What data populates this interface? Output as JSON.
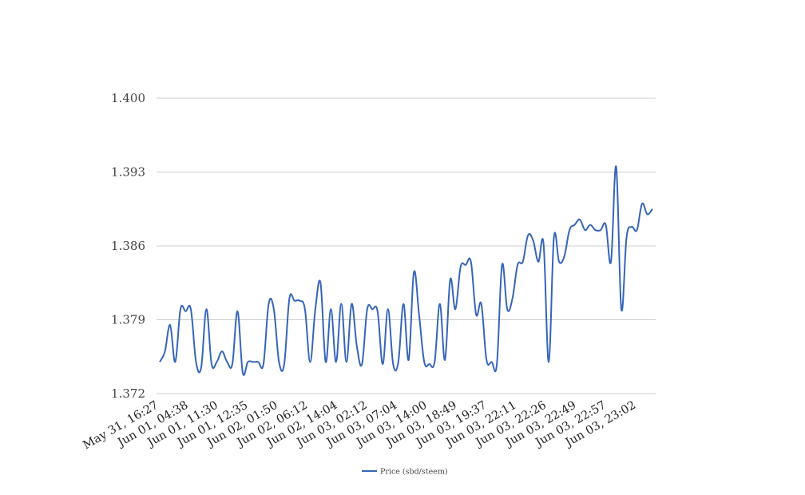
{
  "chart_data": {
    "type": "line",
    "title": "",
    "xlabel": "",
    "ylabel": "",
    "ylim": [
      1.372,
      1.4
    ],
    "yticks": [
      "1.372",
      "1.379",
      "1.386",
      "1.393",
      "1.400"
    ],
    "grid": "horizontal",
    "legend_position": "bottom-center",
    "x_tick_labels": [
      "May 31, 16:27",
      "Jun 01, 04:38",
      "Jun 01, 11:30",
      "Jun 01, 12:35",
      "Jun 02, 01:50",
      "Jun 02, 06:12",
      "Jun 02, 14:04",
      "Jun 03, 02:12",
      "Jun 03, 07:04",
      "Jun 03, 14:00",
      "Jun 03, 18:49",
      "Jun 03, 19:37",
      "Jun 03, 22:11",
      "Jun 03, 22:26",
      "Jun 03, 22:49",
      "Jun 03, 22:57",
      "Jun 03, 23:02"
    ],
    "series": [
      {
        "name": "Price (sbd/steem)",
        "color": "#3565b9",
        "values": [
          1.375,
          1.376,
          1.3785,
          1.375,
          1.38,
          1.3798,
          1.38,
          1.375,
          1.3745,
          1.38,
          1.3748,
          1.375,
          1.376,
          1.375,
          1.3748,
          1.3798,
          1.374,
          1.375,
          1.375,
          1.375,
          1.3748,
          1.3805,
          1.38,
          1.375,
          1.3748,
          1.381,
          1.3808,
          1.3808,
          1.38,
          1.375,
          1.38,
          1.3825,
          1.375,
          1.38,
          1.375,
          1.3805,
          1.375,
          1.3805,
          1.3765,
          1.3748,
          1.38,
          1.38,
          1.3798,
          1.3748,
          1.38,
          1.3748,
          1.375,
          1.3805,
          1.3752,
          1.3835,
          1.3795,
          1.375,
          1.3748,
          1.375,
          1.3805,
          1.3752,
          1.3828,
          1.38,
          1.384,
          1.3842,
          1.3845,
          1.3795,
          1.3805,
          1.3752,
          1.375,
          1.3748,
          1.3842,
          1.38,
          1.381,
          1.3842,
          1.3845,
          1.387,
          1.3865,
          1.3845,
          1.3862,
          1.375,
          1.3868,
          1.3845,
          1.385,
          1.3875,
          1.388,
          1.3885,
          1.3875,
          1.388,
          1.3875,
          1.3875,
          1.388,
          1.3845,
          1.3935,
          1.38,
          1.3868,
          1.3878,
          1.3875,
          1.39,
          1.389,
          1.3895
        ]
      }
    ]
  }
}
